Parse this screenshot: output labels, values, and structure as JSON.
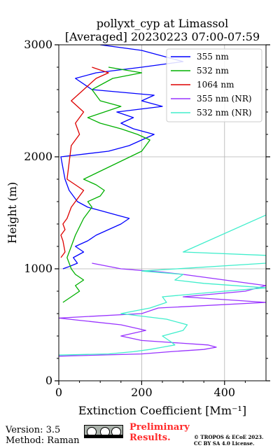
{
  "chart_data": {
    "type": "line",
    "title": "pollyxt_cyp at Limassol",
    "subtitle": "[Averaged] 20230223 07:00-07:59",
    "xlabel": "Extinction Coefficient [Mm⁻¹]",
    "ylabel": "Height (m)",
    "xlim": [
      0,
      500
    ],
    "ylim": [
      0,
      3000
    ],
    "x_ticks": [
      "0",
      "200",
      "400"
    ],
    "y_ticks": [
      "0",
      "1000",
      "2000",
      "3000"
    ],
    "x_tick_values": [
      0,
      200,
      400
    ],
    "y_tick_values": [
      0,
      1000,
      2000,
      3000
    ],
    "grid": true,
    "legend_position": "top-right",
    "series": [
      {
        "name": "355 nm",
        "color": "#0000ff",
        "points": [
          [
            10,
            1000
          ],
          [
            25,
            1020
          ],
          [
            45,
            1050
          ],
          [
            35,
            1100
          ],
          [
            60,
            1150
          ],
          [
            40,
            1200
          ],
          [
            70,
            1250
          ],
          [
            90,
            1300
          ],
          [
            120,
            1350
          ],
          [
            150,
            1400
          ],
          [
            170,
            1450
          ],
          [
            140,
            1480
          ],
          [
            100,
            1520
          ],
          [
            70,
            1550
          ],
          [
            45,
            1600
          ],
          [
            25,
            1700
          ],
          [
            15,
            1800
          ],
          [
            10,
            1900
          ],
          [
            5,
            2000
          ],
          [
            120,
            2050
          ],
          [
            170,
            2100
          ],
          [
            200,
            2150
          ],
          [
            230,
            2200
          ],
          [
            180,
            2250
          ],
          [
            150,
            2300
          ],
          [
            180,
            2350
          ],
          [
            140,
            2400
          ],
          [
            250,
            2450
          ],
          [
            200,
            2500
          ],
          [
            230,
            2550
          ],
          [
            80,
            2600
          ],
          [
            40,
            2700
          ],
          [
            90,
            2750
          ],
          [
            200,
            2800
          ],
          [
            300,
            2850
          ],
          [
            250,
            2900
          ],
          [
            200,
            2950
          ],
          [
            100,
            3000
          ]
        ]
      },
      {
        "name": "532 nm",
        "color": "#00b000",
        "points": [
          [
            10,
            700
          ],
          [
            30,
            750
          ],
          [
            50,
            800
          ],
          [
            40,
            850
          ],
          [
            60,
            900
          ],
          [
            40,
            950
          ],
          [
            30,
            1000
          ],
          [
            20,
            1100
          ],
          [
            30,
            1200
          ],
          [
            40,
            1300
          ],
          [
            60,
            1450
          ],
          [
            80,
            1550
          ],
          [
            70,
            1600
          ],
          [
            100,
            1650
          ],
          [
            110,
            1700
          ],
          [
            90,
            1750
          ],
          [
            60,
            1800
          ],
          [
            200,
            2050
          ],
          [
            220,
            2150
          ],
          [
            190,
            2200
          ],
          [
            150,
            2250
          ],
          [
            100,
            2300
          ],
          [
            70,
            2350
          ],
          [
            110,
            2400
          ],
          [
            150,
            2450
          ],
          [
            100,
            2500
          ],
          [
            80,
            2600
          ],
          [
            130,
            2700
          ],
          [
            200,
            2750
          ],
          [
            120,
            2800
          ]
        ]
      },
      {
        "name": "1064 nm",
        "color": "#dd0000",
        "points": [
          [
            5,
            1100
          ],
          [
            15,
            1150
          ],
          [
            10,
            1250
          ],
          [
            5,
            1300
          ],
          [
            15,
            1350
          ],
          [
            10,
            1400
          ],
          [
            20,
            1450
          ],
          [
            30,
            1550
          ],
          [
            50,
            1650
          ],
          [
            60,
            1700
          ],
          [
            40,
            1750
          ],
          [
            20,
            1800
          ],
          [
            30,
            2100
          ],
          [
            50,
            2200
          ],
          [
            40,
            2300
          ],
          [
            60,
            2400
          ],
          [
            30,
            2500
          ],
          [
            90,
            2700
          ],
          [
            120,
            2750
          ],
          [
            80,
            2800
          ]
        ]
      },
      {
        "name": "355 nm (NR)",
        "color": "#9933ff",
        "points": [
          [
            0,
            220
          ],
          [
            200,
            240
          ],
          [
            270,
            260
          ],
          [
            350,
            280
          ],
          [
            380,
            300
          ],
          [
            360,
            320
          ],
          [
            280,
            340
          ],
          [
            200,
            360
          ],
          [
            150,
            400
          ],
          [
            210,
            450
          ],
          [
            150,
            500
          ],
          [
            50,
            540
          ],
          [
            0,
            560
          ],
          [
            200,
            600
          ],
          [
            240,
            650
          ],
          [
            500,
            700
          ],
          [
            300,
            750
          ],
          [
            450,
            800
          ],
          [
            500,
            850
          ],
          [
            400,
            900
          ],
          [
            300,
            950
          ],
          [
            250,
            970
          ],
          [
            150,
            1000
          ],
          [
            80,
            1050
          ]
        ]
      },
      {
        "name": "532 nm (NR)",
        "color": "#40eecc",
        "points": [
          [
            0,
            230
          ],
          [
            120,
            240
          ],
          [
            180,
            260
          ],
          [
            220,
            280
          ],
          [
            250,
            300
          ],
          [
            280,
            320
          ],
          [
            270,
            350
          ],
          [
            250,
            400
          ],
          [
            300,
            450
          ],
          [
            310,
            500
          ],
          [
            260,
            550
          ],
          [
            150,
            600
          ],
          [
            220,
            650
          ],
          [
            260,
            700
          ],
          [
            250,
            750
          ],
          [
            400,
            800
          ],
          [
            500,
            830
          ],
          [
            350,
            870
          ],
          [
            280,
            900
          ],
          [
            300,
            950
          ],
          [
            200,
            980
          ],
          [
            500,
            1050
          ],
          [
            500,
            1080
          ],
          [
            500,
            1120
          ],
          [
            300,
            1150
          ],
          [
            500,
            1480
          ],
          [
            500,
            1500
          ]
        ]
      }
    ]
  },
  "footer": {
    "version": "Version: 3.5",
    "method": "Method: Raman",
    "cc_icons": [
      "cc-icon",
      "by-icon",
      "sa-icon"
    ],
    "preliminary_line1": "Preliminary",
    "preliminary_line2": "Results.",
    "copyright_line1": "© TROPOS & ECoE 2023.",
    "copyright_line2": "CC BY SA 4.0 License."
  }
}
